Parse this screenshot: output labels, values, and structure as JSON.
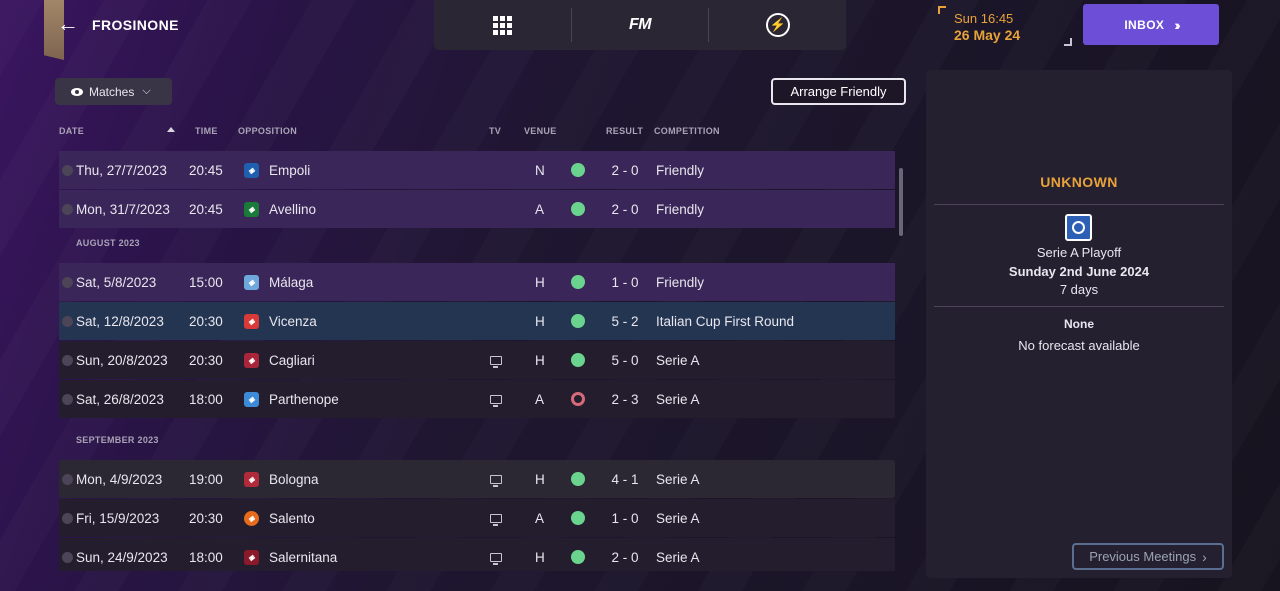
{
  "header": {
    "club_name": "FROSINONE",
    "back_icon": "arrow-left-icon",
    "nav": [
      {
        "icon": "grid-icon",
        "label": ""
      },
      {
        "icon": "fm-logo",
        "label": "FM"
      },
      {
        "icon": "lightning-icon",
        "label": ""
      }
    ],
    "clock": {
      "time": "Sun 16:45",
      "date": "26 May 24"
    },
    "inbox_label": "INBOX",
    "inbox_icon": "double-chevron-right-icon"
  },
  "toolbar": {
    "view_label": "Matches",
    "view_icon": "eye-icon",
    "arrange_label": "Arrange Friendly"
  },
  "table": {
    "columns": {
      "date": "DATE",
      "time": "TIME",
      "opposition": "OPPOSITION",
      "tv": "TV",
      "venue": "VENUE",
      "result": "RESULT",
      "competition": "COMPETITION"
    },
    "months": [
      "AUGUST 2023",
      "SEPTEMBER 2023"
    ],
    "rows": [
      {
        "date": "Thu, 27/7/2023",
        "time": "20:45",
        "opponent": "Empoli",
        "badge_color": "#1f5fb0",
        "tv": false,
        "venue": "N",
        "result": "win",
        "score": "2 - 0",
        "competition": "Friendly"
      },
      {
        "date": "Mon, 31/7/2023",
        "time": "20:45",
        "opponent": "Avellino",
        "badge_color": "#1a7a3a",
        "tv": false,
        "venue": "A",
        "result": "win",
        "score": "2 - 0",
        "competition": "Friendly"
      },
      {
        "date": "Sat, 5/8/2023",
        "time": "15:00",
        "opponent": "Málaga",
        "badge_color": "#6fa8dc",
        "tv": false,
        "venue": "H",
        "result": "win",
        "score": "1 - 0",
        "competition": "Friendly"
      },
      {
        "date": "Sat, 12/8/2023",
        "time": "20:30",
        "opponent": "Vicenza",
        "badge_color": "#d83a3a",
        "tv": false,
        "venue": "H",
        "result": "win",
        "score": "5 - 2",
        "competition": "Italian Cup First Round"
      },
      {
        "date": "Sun, 20/8/2023",
        "time": "20:30",
        "opponent": "Cagliari",
        "badge_color": "#a8253a",
        "tv": true,
        "venue": "H",
        "result": "win",
        "score": "5 - 0",
        "competition": "Serie A"
      },
      {
        "date": "Sat, 26/8/2023",
        "time": "18:00",
        "opponent": "Parthenope",
        "badge_color": "#3d8ad8",
        "tv": true,
        "venue": "A",
        "result": "loss",
        "score": "2 - 3",
        "competition": "Serie A"
      },
      {
        "date": "Mon, 4/9/2023",
        "time": "19:00",
        "opponent": "Bologna",
        "badge_color": "#b02a3a",
        "tv": true,
        "venue": "H",
        "result": "win",
        "score": "4 - 1",
        "competition": "Serie A"
      },
      {
        "date": "Fri, 15/9/2023",
        "time": "20:30",
        "opponent": "Salento",
        "badge_color": "#e86a1a",
        "tv": true,
        "venue": "A",
        "result": "win",
        "score": "1 - 0",
        "competition": "Serie A"
      },
      {
        "date": "Sun, 24/9/2023",
        "time": "18:00",
        "opponent": "Salernitana",
        "badge_color": "#8a1a2a",
        "tv": true,
        "venue": "H",
        "result": "win",
        "score": "2 - 0",
        "competition": "Serie A"
      }
    ]
  },
  "side_panel": {
    "title": "UNKNOWN",
    "competition_icon": "serie-a-playoff-icon",
    "competition": "Serie A Playoff",
    "match_date": "Sunday 2nd June 2024",
    "countdown": "7 days",
    "forecast_title": "None",
    "forecast_text": "No forecast available",
    "prev_meetings_label": "Previous Meetings",
    "prev_icon": "chevron-right-icon"
  },
  "colors": {
    "accent_purple": "#6c4fd6",
    "orange": "#e8a23a",
    "win": "#6ad48e",
    "loss": "#d56a7a"
  }
}
